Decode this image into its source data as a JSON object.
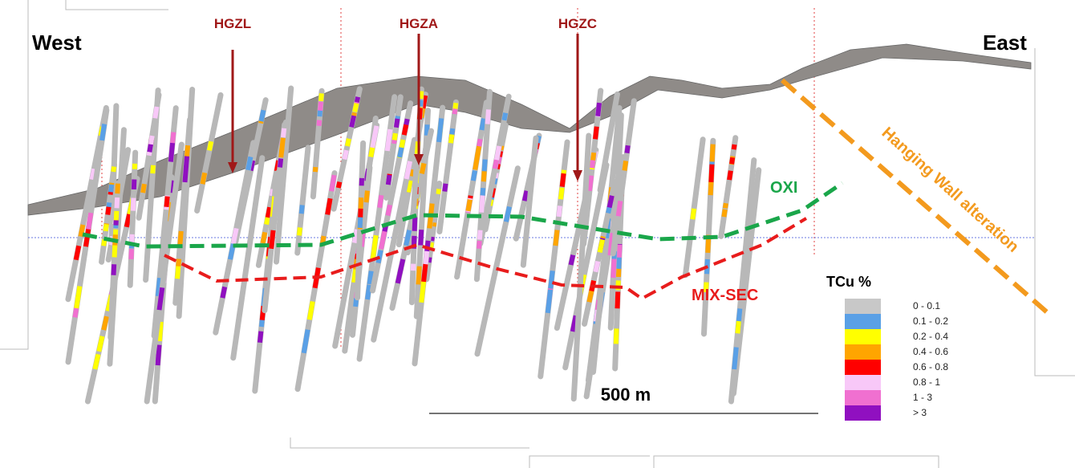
{
  "labels": {
    "west": "West",
    "east": "East",
    "zones": [
      "HGZL",
      "HGZA",
      "HGZC"
    ],
    "oxi": "OXI",
    "mix_sec": "MIX-SEC",
    "hanging_wall": "Hanging Wall alteration",
    "scale": "500 m"
  },
  "legend": {
    "title": "TCu %",
    "items": [
      {
        "label": "0 - 0.1",
        "color": "#c8c8c8"
      },
      {
        "label": "0.1 - 0.2",
        "color": "#5aa0e6"
      },
      {
        "label": "0.2 - 0.4",
        "color": "#ffff00"
      },
      {
        "label": "0.4 - 0.6",
        "color": "#ffa500"
      },
      {
        "label": "0.6 - 0.8",
        "color": "#ff0000"
      },
      {
        "label": "0.8 - 1",
        "color": "#f8c8f8"
      },
      {
        "label": "1 - 3",
        "color": "#f070d0"
      },
      {
        "label": "> 3",
        "color": "#9010c0"
      }
    ]
  }
}
